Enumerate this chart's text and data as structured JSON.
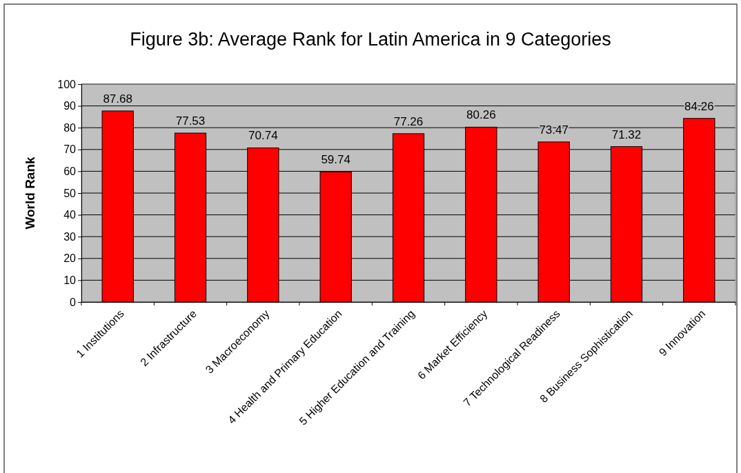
{
  "chart_data": {
    "type": "bar",
    "title": "Figure 3b: Average Rank for Latin America in 9 Categories",
    "ylabel": "World Rank",
    "categories": [
      "1 Institutions",
      "2 Infrastructure",
      "3 Macroeconomy",
      "4 Health and Primary Education",
      "5 Higher Education and Training",
      "6 Market Efficiency",
      "7 Technological Readiness",
      "8 Business Sophistication",
      "9 Innovation"
    ],
    "values": [
      87.68,
      77.53,
      70.74,
      59.74,
      77.26,
      80.26,
      73.47,
      71.32,
      84.26
    ],
    "color": "#ff0000",
    "ylim": [
      0,
      100
    ],
    "yticks": [
      0,
      10,
      20,
      30,
      40,
      50,
      60,
      70,
      80,
      90,
      100
    ],
    "grid": "y",
    "data_labels": true
  }
}
